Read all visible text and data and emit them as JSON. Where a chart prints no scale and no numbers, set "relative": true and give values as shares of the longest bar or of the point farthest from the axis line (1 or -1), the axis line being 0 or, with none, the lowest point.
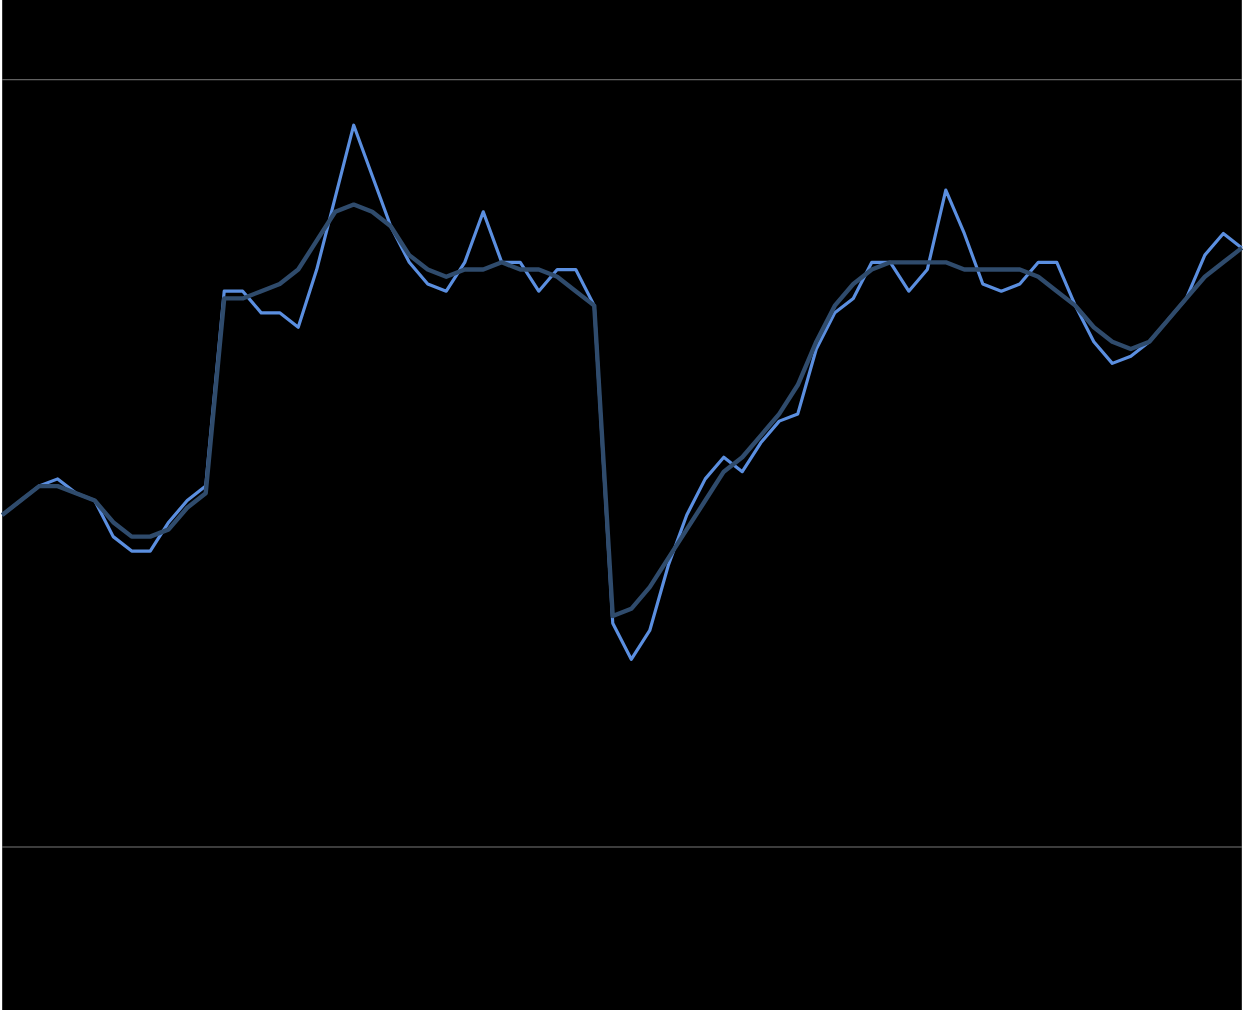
{
  "chart_data": {
    "type": "line",
    "relative": true,
    "categories": [
      null,
      null,
      null,
      null,
      null,
      null,
      null,
      null,
      null,
      null,
      null,
      null,
      null,
      null,
      null,
      null,
      null,
      null,
      null,
      null,
      null,
      null,
      null,
      null,
      null,
      null,
      null,
      null,
      null,
      null,
      null,
      null,
      null,
      null,
      null,
      null,
      null,
      null,
      null,
      null,
      null,
      null,
      null,
      null,
      null,
      null,
      null,
      null,
      null,
      null,
      null,
      null,
      null,
      null,
      null,
      null,
      null,
      null,
      null,
      null,
      null,
      null,
      null,
      null,
      null,
      null,
      null,
      null
    ],
    "series": [
      {
        "color": "#5b8fe0",
        "values": [
          0.46,
          0.48,
          0.5,
          0.51,
          0.49,
          0.48,
          0.43,
          0.41,
          0.41,
          0.45,
          0.48,
          0.5,
          0.77,
          0.77,
          0.74,
          0.74,
          0.72,
          0.8,
          0.9,
          1.0,
          0.93,
          0.86,
          0.81,
          0.78,
          0.77,
          0.81,
          0.88,
          0.81,
          0.81,
          0.77,
          0.8,
          0.8,
          0.75,
          0.31,
          0.26,
          0.3,
          0.39,
          0.46,
          0.51,
          0.54,
          0.52,
          0.56,
          0.59,
          0.6,
          0.69,
          0.74,
          0.76,
          0.81,
          0.81,
          0.77,
          0.8,
          0.91,
          0.85,
          0.78,
          0.77,
          0.78,
          0.81,
          0.81,
          0.75,
          0.7,
          0.67,
          0.68,
          0.7,
          0.73,
          0.76,
          0.82,
          0.85,
          0.83
        ]
      },
      {
        "color": "#2f4b6c",
        "values": [
          0.46,
          0.48,
          0.5,
          0.5,
          0.49,
          0.48,
          0.45,
          0.43,
          0.43,
          0.44,
          0.47,
          0.49,
          0.76,
          0.76,
          0.77,
          0.78,
          0.8,
          0.84,
          0.88,
          0.89,
          0.88,
          0.86,
          0.82,
          0.8,
          0.79,
          0.8,
          0.8,
          0.81,
          0.8,
          0.8,
          0.79,
          0.77,
          0.75,
          0.32,
          0.33,
          0.36,
          0.4,
          0.44,
          0.48,
          0.52,
          0.54,
          0.57,
          0.6,
          0.64,
          0.7,
          0.75,
          0.78,
          0.8,
          0.81,
          0.81,
          0.81,
          0.81,
          0.8,
          0.8,
          0.8,
          0.8,
          0.79,
          0.77,
          0.75,
          0.72,
          0.7,
          0.69,
          0.7,
          0.73,
          0.76,
          0.79,
          0.81,
          0.83
        ]
      }
    ]
  }
}
